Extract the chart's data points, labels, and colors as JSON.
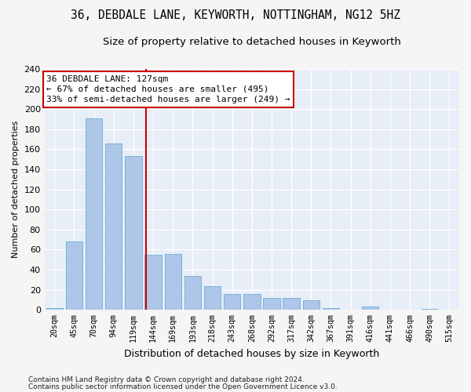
{
  "title1": "36, DEBDALE LANE, KEYWORTH, NOTTINGHAM, NG12 5HZ",
  "title2": "Size of property relative to detached houses in Keyworth",
  "xlabel": "Distribution of detached houses by size in Keyworth",
  "ylabel": "Number of detached properties",
  "categories": [
    "20sqm",
    "45sqm",
    "70sqm",
    "94sqm",
    "119sqm",
    "144sqm",
    "169sqm",
    "193sqm",
    "218sqm",
    "243sqm",
    "268sqm",
    "292sqm",
    "317sqm",
    "342sqm",
    "367sqm",
    "391sqm",
    "416sqm",
    "441sqm",
    "466sqm",
    "490sqm",
    "515sqm"
  ],
  "values": [
    2,
    68,
    191,
    166,
    153,
    55,
    56,
    34,
    24,
    16,
    16,
    12,
    12,
    10,
    2,
    0,
    3,
    0,
    0,
    1,
    0
  ],
  "bar_color": "#aec6e8",
  "bar_edge_color": "#6aaed6",
  "vline_x": 4.65,
  "vline_color": "#cc0000",
  "annotation_title": "36 DEBDALE LANE: 127sqm",
  "annotation_line1": "← 67% of detached houses are smaller (495)",
  "annotation_line2": "33% of semi-detached houses are larger (249) →",
  "annotation_box_facecolor": "#ffffff",
  "annotation_box_edgecolor": "#cc0000",
  "ylim": [
    0,
    240
  ],
  "yticks": [
    0,
    20,
    40,
    60,
    80,
    100,
    120,
    140,
    160,
    180,
    200,
    220,
    240
  ],
  "footer1": "Contains HM Land Registry data © Crown copyright and database right 2024.",
  "footer2": "Contains public sector information licensed under the Open Government Licence v3.0.",
  "plot_bg_color": "#e8eef7",
  "fig_bg_color": "#f5f5f5",
  "grid_color": "#ffffff",
  "title1_fontsize": 10.5,
  "title2_fontsize": 9.5,
  "ylabel_fontsize": 8,
  "xlabel_fontsize": 9,
  "ann_fontsize": 8,
  "footer_fontsize": 6.5
}
